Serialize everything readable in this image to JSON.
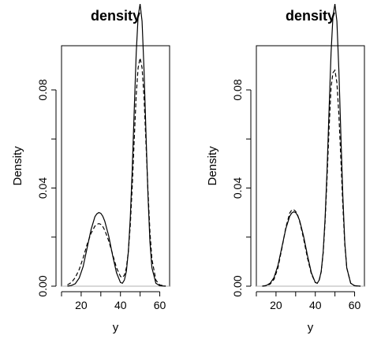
{
  "chart_data": [
    {
      "type": "line",
      "title": "density",
      "xlabel": "y",
      "ylabel": "Density",
      "xlim": [
        10,
        65
      ],
      "ylim": [
        0,
        0.098
      ],
      "xticks": [
        20,
        40,
        60
      ],
      "yticks": [
        0.0,
        0.04,
        0.08
      ],
      "xtick_labels": [
        "20",
        "40",
        "60"
      ],
      "ytick_labels": [
        "0.00",
        "0.04",
        "0.08"
      ],
      "baseline": true,
      "series": [
        {
          "style": "solid",
          "x": [
            13,
            15,
            17,
            19,
            21,
            23,
            25,
            27,
            28,
            29,
            30,
            31,
            32,
            34,
            36,
            38,
            40,
            41,
            42,
            43,
            44,
            45,
            46,
            47,
            48,
            49,
            50,
            51,
            52,
            53,
            54,
            55,
            56,
            58,
            60,
            63
          ],
          "y": [
            0.0,
            0.0003,
            0.001,
            0.0033,
            0.008,
            0.0155,
            0.023,
            0.0283,
            0.0295,
            0.03,
            0.0297,
            0.0285,
            0.0265,
            0.0205,
            0.0125,
            0.0055,
            0.0015,
            0.0012,
            0.0025,
            0.006,
            0.014,
            0.028,
            0.048,
            0.072,
            0.095,
            0.11,
            0.115,
            0.108,
            0.088,
            0.062,
            0.037,
            0.018,
            0.0075,
            0.0012,
            0.0002,
            0.0
          ]
        },
        {
          "style": "dashed",
          "x": [
            13,
            15,
            17,
            19,
            21,
            23,
            25,
            27,
            28,
            29,
            30,
            31,
            32,
            34,
            36,
            38,
            40,
            41,
            42,
            43,
            44,
            45,
            46,
            47,
            48,
            49,
            50,
            51,
            52,
            53,
            54,
            55,
            56,
            58,
            60,
            63
          ],
          "y": [
            0.0005,
            0.0015,
            0.0035,
            0.0068,
            0.0115,
            0.017,
            0.0215,
            0.0245,
            0.0252,
            0.0255,
            0.0252,
            0.0243,
            0.0228,
            0.0185,
            0.013,
            0.0075,
            0.004,
            0.0035,
            0.0045,
            0.0075,
            0.014,
            0.025,
            0.041,
            0.06,
            0.078,
            0.089,
            0.093,
            0.089,
            0.077,
            0.058,
            0.039,
            0.022,
            0.011,
            0.0025,
            0.0005,
            0.0
          ]
        }
      ]
    },
    {
      "type": "line",
      "title": "density",
      "xlabel": "y",
      "ylabel": "Density",
      "xlim": [
        10,
        65
      ],
      "ylim": [
        0,
        0.098
      ],
      "xticks": [
        20,
        40,
        60
      ],
      "yticks": [
        0.0,
        0.04,
        0.08
      ],
      "xtick_labels": [
        "20",
        "40",
        "60"
      ],
      "ytick_labels": [
        "0.00",
        "0.04",
        "0.08"
      ],
      "baseline": true,
      "series": [
        {
          "style": "solid",
          "x": [
            13,
            15,
            17,
            19,
            21,
            23,
            25,
            27,
            28,
            29,
            30,
            31,
            32,
            34,
            36,
            38,
            40,
            41,
            42,
            43,
            44,
            45,
            46,
            47,
            48,
            49,
            50,
            51,
            52,
            53,
            54,
            55,
            56,
            58,
            60,
            63
          ],
          "y": [
            0.0,
            0.0003,
            0.0012,
            0.0035,
            0.0085,
            0.016,
            0.0235,
            0.0285,
            0.0298,
            0.0303,
            0.03,
            0.0288,
            0.0268,
            0.0205,
            0.0125,
            0.0055,
            0.0015,
            0.0012,
            0.0025,
            0.006,
            0.014,
            0.028,
            0.048,
            0.072,
            0.095,
            0.11,
            0.115,
            0.108,
            0.088,
            0.062,
            0.037,
            0.018,
            0.0075,
            0.0012,
            0.0002,
            0.0
          ]
        },
        {
          "style": "dashed",
          "x": [
            13,
            15,
            17,
            19,
            21,
            23,
            25,
            27,
            28,
            29,
            30,
            31,
            32,
            34,
            36,
            38,
            40,
            41,
            42,
            43,
            44,
            45,
            46,
            47,
            48,
            49,
            50,
            51,
            52,
            53,
            54,
            55,
            56,
            58,
            60,
            63
          ],
          "y": [
            0.0,
            0.0002,
            0.0008,
            0.0028,
            0.0075,
            0.0155,
            0.024,
            0.0298,
            0.031,
            0.0312,
            0.0305,
            0.029,
            0.0265,
            0.0195,
            0.0115,
            0.005,
            0.0015,
            0.0012,
            0.0025,
            0.0058,
            0.0135,
            0.0265,
            0.0445,
            0.0645,
            0.081,
            0.087,
            0.088,
            0.083,
            0.07,
            0.052,
            0.033,
            0.017,
            0.0075,
            0.0012,
            0.0002,
            0.0
          ]
        }
      ]
    }
  ]
}
